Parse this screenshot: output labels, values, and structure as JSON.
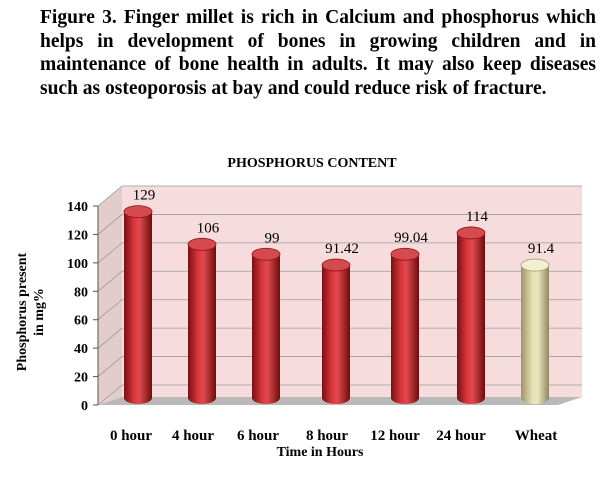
{
  "caption": {
    "text": "Figure 3. Finger millet is rich in Calcium and phosphorus which helps in development of bones in growing children and in maintenance of bone health in adults. It may also keep diseases such as osteoporosis at bay and could reduce risk of fracture."
  },
  "chart_data": {
    "type": "bar",
    "title": "PHOSPHORUS CONTENT",
    "xlabel": "Time in Hours",
    "ylabel": "Phosphorus present in mg%",
    "ylabel_lines": [
      "Phosphorus present",
      "in mg%"
    ],
    "categories": [
      "0 hour",
      "4 hour",
      "6 hour",
      "8 hour",
      "12 hour",
      "24 hour",
      "Wheat"
    ],
    "values": [
      129,
      106,
      99,
      91.42,
      99.04,
      114,
      91.4
    ],
    "data_labels": [
      "129",
      "106",
      "99",
      "91.42",
      "99.04",
      "114",
      "91.4"
    ],
    "ylim": [
      0,
      140
    ],
    "yticks": [
      0,
      20,
      40,
      60,
      80,
      100,
      120,
      140
    ],
    "grid": true,
    "bar_style": "3d-cylinder",
    "colors": {
      "millet_bar": "#c0272d",
      "wheat_bar": "#d6cc9a",
      "wall": "#f6dcdc",
      "floor": "#b9b9b9",
      "grid": "#9a9a9a"
    }
  }
}
